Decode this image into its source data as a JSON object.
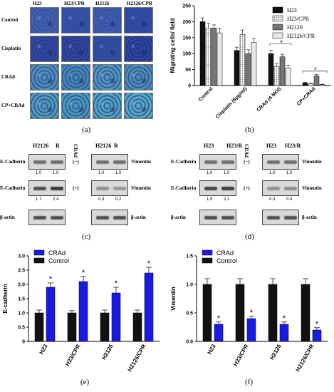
{
  "panel_labels": {
    "a": "(a)",
    "b": "(b)",
    "c": "(c)",
    "d": "(d)",
    "e": "(e)",
    "f": "(f)"
  },
  "panel_a": {
    "columns": [
      "H23",
      "H23/CPR",
      "H2126",
      "H2126/CPR"
    ],
    "rows": [
      "Control",
      "Cisplatin",
      "CRAd",
      "CP+CRAd"
    ],
    "cell_colors": [
      [
        "#3f5fb0",
        "#3050a8",
        "#3b5caf",
        "#2b48a4"
      ],
      [
        "#2c3f9a",
        "#283a94",
        "#2e4a9f",
        "#253896"
      ],
      [
        "#4a8fb6",
        "#4187b2",
        "#4f97ba",
        "#4a8eb4"
      ],
      [
        "#4c9cb6",
        "#459ab8",
        "#50a2bd",
        "#53a9c0"
      ]
    ]
  },
  "panel_c": {
    "left_header": [
      "H2126",
      "R"
    ],
    "right_header": [
      "H2126",
      "R"
    ],
    "crad_label": "CRAd",
    "rows": [
      {
        "left_label": "E-Cadherin",
        "sign": "(−)",
        "right_label": "Vimentin",
        "left_vals": [
          "1.0",
          "1.0"
        ],
        "right_vals": [
          "1.0",
          "1.0"
        ]
      },
      {
        "left_label": "E-Cadherin",
        "sign": "(+)",
        "right_label": "Vimentin",
        "left_vals": [
          "1.7",
          "2.4"
        ],
        "right_vals": [
          "0.3",
          "0.2"
        ]
      },
      {
        "left_label": "β-actin",
        "sign": "",
        "right_label": "β-actin",
        "left_vals": [],
        "right_vals": []
      }
    ]
  },
  "panel_d": {
    "left_header": [
      "H23",
      "H23/R"
    ],
    "right_header": [
      "H23",
      "H23/R"
    ],
    "crad_label": "CRAd",
    "rows": [
      {
        "left_label": "E-Cadherin",
        "sign": "(−)",
        "right_label": "Vimentin",
        "left_vals": [
          "1.0",
          "1.0"
        ],
        "right_vals": [
          "1.0",
          "1.0"
        ]
      },
      {
        "left_label": "E-Cadherin",
        "sign": "(+)",
        "right_label": "Vimentin",
        "left_vals": [
          "1.9",
          "2.1"
        ],
        "right_vals": [
          "0.3",
          "0.4"
        ]
      },
      {
        "left_label": "β-actin",
        "sign": "",
        "right_label": "β-actin",
        "left_vals": [],
        "right_vals": []
      }
    ]
  },
  "chart_data": [
    {
      "id": "b",
      "type": "bar",
      "ylabel": "Migrating cells/ field",
      "ylim": [
        0,
        250
      ],
      "yticks": [
        0,
        50,
        100,
        150,
        200,
        250
      ],
      "categories": [
        "Control",
        "Cisplatin (8μg/ml)",
        "CRAd (4 MOI)",
        "CP+CRAd"
      ],
      "series": [
        {
          "name": "H23",
          "values": [
            200,
            110,
            100,
            8
          ],
          "errors": [
            12,
            10,
            10,
            2
          ],
          "color": "#111111",
          "pattern": "solid"
        },
        {
          "name": "H23/CPR",
          "values": [
            180,
            160,
            60,
            5
          ],
          "errors": [
            15,
            14,
            8,
            2
          ],
          "color": "#ffffff",
          "pattern": "grid"
        },
        {
          "name": "H2126",
          "values": [
            180,
            100,
            90,
            30
          ],
          "errors": [
            10,
            12,
            8,
            4
          ],
          "color": "#777777",
          "pattern": "solid"
        },
        {
          "name": "H2126/CPR",
          "values": [
            165,
            135,
            55,
            3
          ],
          "errors": [
            14,
            12,
            9,
            1
          ],
          "color": "#e8e8e8",
          "pattern": "solid"
        }
      ],
      "annotations": [
        "*",
        "*"
      ],
      "legend": "top-right"
    },
    {
      "id": "e",
      "type": "bar",
      "ylabel": "E-cadherin",
      "ylim": [
        0,
        3.0
      ],
      "yticks": [
        0,
        0.5,
        1.0,
        1.5,
        2.0,
        2.5,
        3.0
      ],
      "categories": [
        "H23",
        "H23/CPR",
        "H2126",
        "H2126/CPR"
      ],
      "series": [
        {
          "name": "Control",
          "values": [
            1.0,
            1.0,
            1.0,
            1.0
          ],
          "errors": [
            0.1,
            0.08,
            0.1,
            0.1
          ],
          "color": "#111111"
        },
        {
          "name": "CRAd",
          "values": [
            1.9,
            2.1,
            1.7,
            2.4
          ],
          "errors": [
            0.15,
            0.18,
            0.2,
            0.2
          ],
          "color": "#1a1ae6"
        }
      ],
      "annotations": [
        "*",
        "*",
        "*",
        "*"
      ],
      "legend": "top-left"
    },
    {
      "id": "f",
      "type": "bar",
      "ylabel": "Vimentin",
      "ylim": [
        0,
        1.5
      ],
      "yticks": [
        0.0,
        0.5,
        1.0,
        1.5
      ],
      "categories": [
        "H23",
        "H23/CPR",
        "H2126",
        "H2126/CPR"
      ],
      "series": [
        {
          "name": "Control",
          "values": [
            1.0,
            1.0,
            1.0,
            1.0
          ],
          "errors": [
            0.1,
            0.1,
            0.1,
            0.1
          ],
          "color": "#111111"
        },
        {
          "name": "CRAd",
          "values": [
            0.3,
            0.4,
            0.3,
            0.2
          ],
          "errors": [
            0.04,
            0.04,
            0.04,
            0.04
          ],
          "color": "#1a1ae6"
        }
      ],
      "annotations": [
        "*",
        "*",
        "*",
        "*"
      ],
      "legend": "top-left"
    }
  ]
}
